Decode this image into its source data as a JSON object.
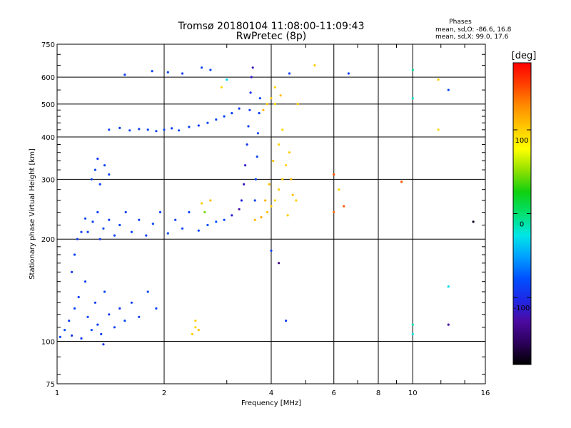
{
  "chart_data": {
    "type": "scatter",
    "title": "Tromsø 20180104 11:08:00-11:09:43",
    "subtitle": "RwPretec (8p)",
    "xlabel": "Frequency [MHz]",
    "ylabel": "Stationary phase Virtual Height [km]",
    "x_scale": "log",
    "y_scale": "log",
    "xlim": [
      1,
      16
    ],
    "ylim": [
      75,
      750
    ],
    "xticks": [
      1,
      2,
      4,
      6,
      8,
      10,
      16
    ],
    "xtick_labels": [
      "1",
      "2",
      "4",
      "6",
      "8",
      "10",
      "16"
    ],
    "yticks": [
      75,
      100,
      200,
      300,
      400,
      500,
      600,
      750
    ],
    "ytick_labels": [
      "75",
      "100",
      "200",
      "300",
      "400",
      "500",
      "600",
      "750"
    ],
    "grid": true,
    "colorbar": {
      "title": "[deg]",
      "range": [
        -180,
        180
      ],
      "ticks": [
        100,
        0,
        -100
      ],
      "tick_labels": [
        "100",
        "0",
        "-100"
      ],
      "colors": [
        "#000000",
        "#2c005a",
        "#4b0aa0",
        "#1e28e6",
        "#0050ff",
        "#00a0ff",
        "#00e6e6",
        "#00e070",
        "#10d010",
        "#90e000",
        "#ffff00",
        "#ffc800",
        "#ff8c00",
        "#ff4000",
        "#ff0000"
      ]
    },
    "phase_stats": {
      "heading": "Phases",
      "o_mode": "mean, sd,O: -86.6, 16.8",
      "x_mode": "mean, sd,X:  99.0, 17.6"
    },
    "series": [
      {
        "points": [
          {
            "x": 1.02,
            "y": 103,
            "p": -85
          },
          {
            "x": 1.05,
            "y": 108,
            "p": -80
          },
          {
            "x": 1.08,
            "y": 115,
            "p": -90
          },
          {
            "x": 1.1,
            "y": 104,
            "p": -95
          },
          {
            "x": 1.12,
            "y": 125,
            "p": -85
          },
          {
            "x": 1.15,
            "y": 135,
            "p": -88
          },
          {
            "x": 1.17,
            "y": 102,
            "p": -92
          },
          {
            "x": 1.2,
            "y": 150,
            "p": -86
          },
          {
            "x": 1.22,
            "y": 118,
            "p": -84
          },
          {
            "x": 1.25,
            "y": 108,
            "p": -78
          },
          {
            "x": 1.28,
            "y": 130,
            "p": -90
          },
          {
            "x": 1.3,
            "y": 112,
            "p": -87
          },
          {
            "x": 1.33,
            "y": 105,
            "p": -89
          },
          {
            "x": 1.36,
            "y": 140,
            "p": -83
          },
          {
            "x": 1.4,
            "y": 120,
            "p": -91
          },
          {
            "x": 1.45,
            "y": 110,
            "p": -86
          },
          {
            "x": 1.5,
            "y": 125,
            "p": -94
          },
          {
            "x": 1.55,
            "y": 115,
            "p": -82
          },
          {
            "x": 1.62,
            "y": 130,
            "p": -88
          },
          {
            "x": 1.7,
            "y": 118,
            "p": -90
          },
          {
            "x": 1.8,
            "y": 140,
            "p": -85
          },
          {
            "x": 1.9,
            "y": 125,
            "p": -87
          },
          {
            "x": 1.35,
            "y": 98,
            "p": -96
          },
          {
            "x": 1.1,
            "y": 160,
            "p": -88
          },
          {
            "x": 1.12,
            "y": 180,
            "p": -85
          },
          {
            "x": 1.14,
            "y": 200,
            "p": -90
          },
          {
            "x": 1.17,
            "y": 210,
            "p": -87
          },
          {
            "x": 1.2,
            "y": 230,
            "p": -84
          },
          {
            "x": 1.22,
            "y": 210,
            "p": -86
          },
          {
            "x": 1.26,
            "y": 225,
            "p": -90
          },
          {
            "x": 1.3,
            "y": 240,
            "p": -88
          },
          {
            "x": 1.35,
            "y": 215,
            "p": -85
          },
          {
            "x": 1.4,
            "y": 228,
            "p": -92
          },
          {
            "x": 1.45,
            "y": 205,
            "p": -87
          },
          {
            "x": 1.5,
            "y": 220,
            "p": -84
          },
          {
            "x": 1.56,
            "y": 240,
            "p": -89
          },
          {
            "x": 1.62,
            "y": 210,
            "p": -86
          },
          {
            "x": 1.7,
            "y": 228,
            "p": -90
          },
          {
            "x": 1.78,
            "y": 205,
            "p": -88
          },
          {
            "x": 1.86,
            "y": 222,
            "p": -85
          },
          {
            "x": 1.95,
            "y": 240,
            "p": -87
          },
          {
            "x": 2.05,
            "y": 208,
            "p": -83
          },
          {
            "x": 2.15,
            "y": 228,
            "p": -88
          },
          {
            "x": 2.25,
            "y": 215,
            "p": -86
          },
          {
            "x": 2.35,
            "y": 240,
            "p": -84
          },
          {
            "x": 2.5,
            "y": 212,
            "p": -82
          },
          {
            "x": 2.65,
            "y": 220,
            "p": -80
          },
          {
            "x": 2.8,
            "y": 225,
            "p": -78
          },
          {
            "x": 2.95,
            "y": 228,
            "p": -85
          },
          {
            "x": 3.1,
            "y": 235,
            "p": -110
          },
          {
            "x": 3.25,
            "y": 245,
            "p": -125
          },
          {
            "x": 1.32,
            "y": 200,
            "p": -90
          },
          {
            "x": 1.25,
            "y": 300,
            "p": -88
          },
          {
            "x": 1.28,
            "y": 320,
            "p": -85
          },
          {
            "x": 1.32,
            "y": 290,
            "p": -90
          },
          {
            "x": 1.36,
            "y": 330,
            "p": -86
          },
          {
            "x": 1.4,
            "y": 310,
            "p": -84
          },
          {
            "x": 1.3,
            "y": 345,
            "p": -92
          },
          {
            "x": 1.4,
            "y": 420,
            "p": -85
          },
          {
            "x": 1.5,
            "y": 425,
            "p": -88
          },
          {
            "x": 1.6,
            "y": 418,
            "p": -86
          },
          {
            "x": 1.7,
            "y": 422,
            "p": -90
          },
          {
            "x": 1.8,
            "y": 420,
            "p": -84
          },
          {
            "x": 1.9,
            "y": 416,
            "p": -87
          },
          {
            "x": 2.0,
            "y": 420,
            "p": -85
          },
          {
            "x": 2.1,
            "y": 424,
            "p": -88
          },
          {
            "x": 2.2,
            "y": 418,
            "p": -83
          },
          {
            "x": 2.35,
            "y": 428,
            "p": -86
          },
          {
            "x": 2.5,
            "y": 432,
            "p": -89
          },
          {
            "x": 2.65,
            "y": 440,
            "p": -85
          },
          {
            "x": 2.8,
            "y": 450,
            "p": -87
          },
          {
            "x": 2.95,
            "y": 460,
            "p": -84
          },
          {
            "x": 3.1,
            "y": 470,
            "p": -90
          },
          {
            "x": 3.25,
            "y": 485,
            "p": -88
          },
          {
            "x": 3.3,
            "y": 260,
            "p": -105
          },
          {
            "x": 3.35,
            "y": 290,
            "p": -118
          },
          {
            "x": 3.38,
            "y": 330,
            "p": -110
          },
          {
            "x": 3.42,
            "y": 380,
            "p": -95
          },
          {
            "x": 3.45,
            "y": 430,
            "p": -88
          },
          {
            "x": 3.48,
            "y": 480,
            "p": -92
          },
          {
            "x": 3.5,
            "y": 540,
            "p": -100
          },
          {
            "x": 3.52,
            "y": 600,
            "p": -115
          },
          {
            "x": 3.55,
            "y": 640,
            "p": -120
          },
          {
            "x": 3.6,
            "y": 260,
            "p": -86
          },
          {
            "x": 3.62,
            "y": 300,
            "p": -84
          },
          {
            "x": 3.65,
            "y": 350,
            "p": -87
          },
          {
            "x": 3.67,
            "y": 410,
            "p": -85
          },
          {
            "x": 3.7,
            "y": 470,
            "p": -89
          },
          {
            "x": 3.72,
            "y": 520,
            "p": -86
          },
          {
            "x": 1.55,
            "y": 610,
            "p": -90
          },
          {
            "x": 1.85,
            "y": 625,
            "p": -88
          },
          {
            "x": 2.05,
            "y": 620,
            "p": -85
          },
          {
            "x": 2.25,
            "y": 615,
            "p": -90
          },
          {
            "x": 2.55,
            "y": 640,
            "p": -87
          },
          {
            "x": 2.7,
            "y": 630,
            "p": -84
          },
          {
            "x": 4.5,
            "y": 615,
            "p": -86
          },
          {
            "x": 6.6,
            "y": 615,
            "p": -88
          },
          {
            "x": 10.0,
            "y": 630,
            "p": -10
          },
          {
            "x": 10.0,
            "y": 520,
            "p": -20
          },
          {
            "x": 12.6,
            "y": 550,
            "p": -85
          },
          {
            "x": 12.6,
            "y": 145,
            "p": -30
          },
          {
            "x": 10.0,
            "y": 112,
            "p": -15
          },
          {
            "x": 10.0,
            "y": 105,
            "p": -25
          },
          {
            "x": 12.6,
            "y": 112,
            "p": -130
          },
          {
            "x": 14.8,
            "y": 225,
            "p": -170
          },
          {
            "x": 4.0,
            "y": 185,
            "p": -90
          },
          {
            "x": 4.2,
            "y": 170,
            "p": -140
          },
          {
            "x": 4.4,
            "y": 115,
            "p": -90
          },
          {
            "x": 3.0,
            "y": 590,
            "p": -30
          },
          {
            "x": 3.6,
            "y": 228,
            "p": 110
          },
          {
            "x": 3.75,
            "y": 232,
            "p": 115
          },
          {
            "x": 3.9,
            "y": 240,
            "p": 105
          },
          {
            "x": 4.0,
            "y": 250,
            "p": 100
          },
          {
            "x": 4.1,
            "y": 260,
            "p": 95
          },
          {
            "x": 4.2,
            "y": 280,
            "p": 100
          },
          {
            "x": 4.3,
            "y": 300,
            "p": 105
          },
          {
            "x": 4.4,
            "y": 330,
            "p": 98
          },
          {
            "x": 4.5,
            "y": 360,
            "p": 102
          },
          {
            "x": 4.55,
            "y": 300,
            "p": 110
          },
          {
            "x": 4.6,
            "y": 270,
            "p": 105
          },
          {
            "x": 4.7,
            "y": 260,
            "p": 100
          },
          {
            "x": 4.3,
            "y": 420,
            "p": 95
          },
          {
            "x": 4.2,
            "y": 380,
            "p": 98
          },
          {
            "x": 4.05,
            "y": 340,
            "p": 104
          },
          {
            "x": 3.95,
            "y": 290,
            "p": 108
          },
          {
            "x": 3.85,
            "y": 260,
            "p": 112
          },
          {
            "x": 4.45,
            "y": 235,
            "p": 100
          },
          {
            "x": 3.8,
            "y": 480,
            "p": 110
          },
          {
            "x": 3.9,
            "y": 500,
            "p": 105
          },
          {
            "x": 4.0,
            "y": 520,
            "p": 100
          },
          {
            "x": 4.1,
            "y": 500,
            "p": 95
          },
          {
            "x": 4.25,
            "y": 530,
            "p": 108
          },
          {
            "x": 4.1,
            "y": 560,
            "p": 95
          },
          {
            "x": 4.75,
            "y": 500,
            "p": 102
          },
          {
            "x": 2.9,
            "y": 560,
            "p": 95
          },
          {
            "x": 5.3,
            "y": 650,
            "p": 100
          },
          {
            "x": 2.4,
            "y": 105,
            "p": 100
          },
          {
            "x": 2.45,
            "y": 110,
            "p": 95
          },
          {
            "x": 2.5,
            "y": 108,
            "p": 105
          },
          {
            "x": 2.45,
            "y": 115,
            "p": 100
          },
          {
            "x": 2.55,
            "y": 255,
            "p": 100
          },
          {
            "x": 2.7,
            "y": 260,
            "p": 110
          },
          {
            "x": 2.6,
            "y": 240,
            "p": 45
          },
          {
            "x": 6.0,
            "y": 310,
            "p": 150
          },
          {
            "x": 6.0,
            "y": 240,
            "p": 140
          },
          {
            "x": 6.4,
            "y": 250,
            "p": 145
          },
          {
            "x": 6.2,
            "y": 280,
            "p": 95
          },
          {
            "x": 9.3,
            "y": 295,
            "p": 150
          },
          {
            "x": 11.8,
            "y": 420,
            "p": 95
          },
          {
            "x": 11.8,
            "y": 590,
            "p": 100
          }
        ]
      }
    ]
  }
}
